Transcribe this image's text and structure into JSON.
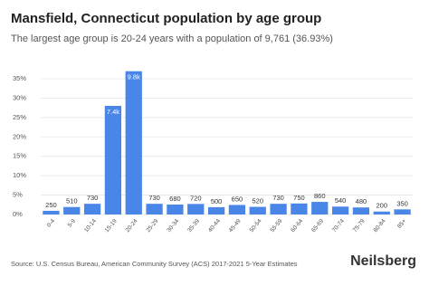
{
  "chart_data": {
    "type": "bar",
    "title": "Mansfield, Connecticut population by age group",
    "subtitle": "The largest age group is 20-24 years with a population of 9,761 (36.93%)",
    "categories": [
      "0-4",
      "5-9",
      "10-14",
      "15-19",
      "20-24",
      "25-29",
      "30-34",
      "35-39",
      "40-44",
      "45-49",
      "50-54",
      "55-59",
      "60-64",
      "65-69",
      "70-74",
      "75-79",
      "80-84",
      "85+"
    ],
    "values": [
      0.95,
      1.93,
      2.76,
      28.0,
      36.93,
      2.76,
      2.57,
      2.72,
      1.89,
      2.46,
      1.97,
      2.76,
      2.84,
      3.25,
      2.04,
      1.82,
      0.76,
      1.32
    ],
    "bar_labels": [
      "250",
      "510",
      "730",
      "7.4k",
      "9.8k",
      "730",
      "680",
      "720",
      "500",
      "650",
      "520",
      "730",
      "750",
      "860",
      "540",
      "480",
      "200",
      "350"
    ],
    "color": "#4a86e8",
    "ylim": [
      0,
      37
    ],
    "yticks": [
      {
        "value": 0,
        "label": "0%"
      },
      {
        "value": 5,
        "label": "5%"
      },
      {
        "value": 10,
        "label": "10%"
      },
      {
        "value": 15,
        "label": "15%"
      },
      {
        "value": 20,
        "label": "20%"
      },
      {
        "value": 25,
        "label": "25%"
      },
      {
        "value": 30,
        "label": "30%"
      },
      {
        "value": 35,
        "label": "35%"
      }
    ],
    "grid": true,
    "source": "Source: U.S. Census Bureau, American Community Survey (ACS) 2017-2021 5-Year Estimates",
    "brand": "Neilsberg"
  }
}
